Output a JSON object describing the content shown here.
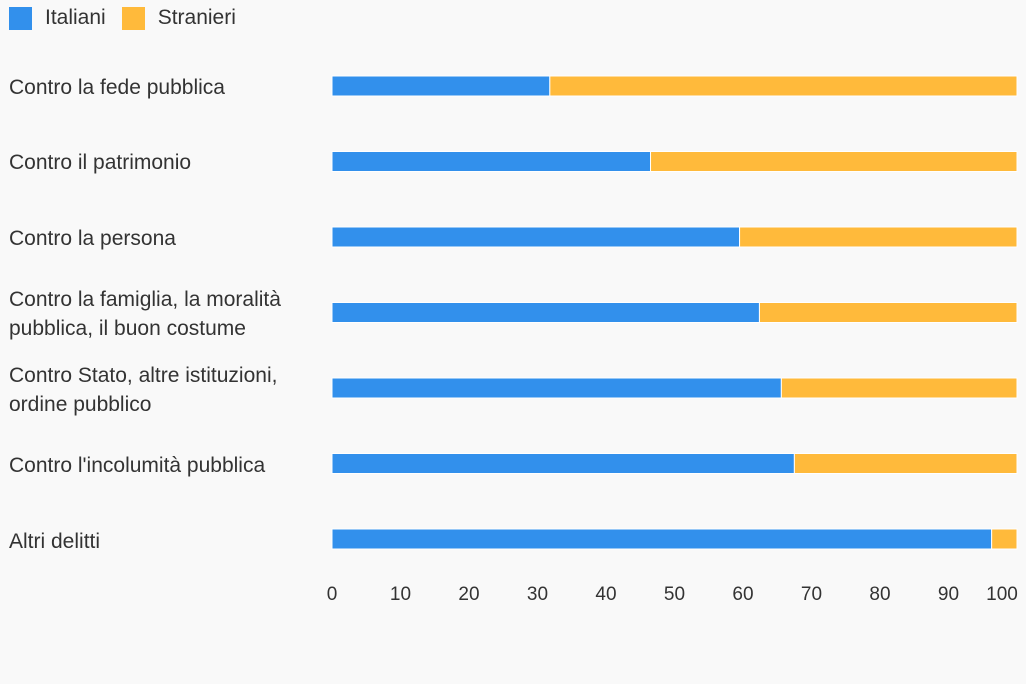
{
  "legend": [
    {
      "label": "Italiani",
      "color": "#3290ec"
    },
    {
      "label": "Stranieri",
      "color": "#ffba3b"
    }
  ],
  "chart_data": {
    "type": "bar",
    "orientation": "horizontal",
    "stacked": true,
    "categories": [
      "Contro la fede pubblica",
      "Contro il patrimonio",
      "Contro la persona",
      "Contro la famiglia, la moralità pubblica, il buon costume",
      "Contro Stato, altre istituzioni, ordine pubblico",
      "Contro l'incolumità pubblica",
      "Altri delitti"
    ],
    "series": [
      {
        "name": "Italiani",
        "color": "#3290ec",
        "values": [
          31.8,
          46.5,
          59.5,
          62.4,
          65.6,
          67.5,
          96.3
        ]
      },
      {
        "name": "Stranieri",
        "color": "#ffba3b",
        "values": [
          68.2,
          53.5,
          40.5,
          37.6,
          34.4,
          32.5,
          3.7
        ]
      }
    ],
    "xlim": [
      0,
      100
    ],
    "xticks": [
      "0",
      "10",
      "20",
      "30",
      "40",
      "50",
      "60",
      "70",
      "80",
      "90",
      "100"
    ],
    "grid": false,
    "legend_position": "top-left"
  }
}
